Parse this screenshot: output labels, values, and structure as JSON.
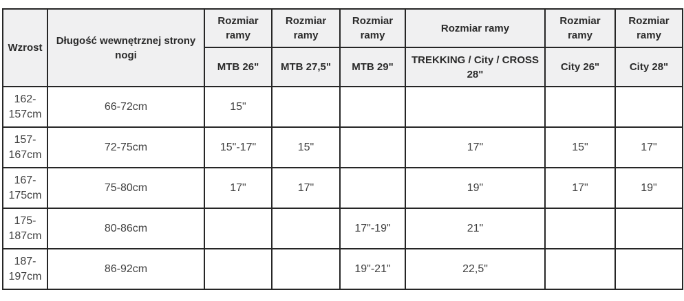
{
  "colors": {
    "header_background": "#f0f0f1",
    "border": "#262626",
    "header_text": "#2b2b2b",
    "body_text": "#404040",
    "cell_background": "#ffffff"
  },
  "table": {
    "corner_headers": [
      "Wzrost",
      "Długość wewnętrznej strony nogi"
    ],
    "group_header_label": "Rozmiar ramy",
    "columns": [
      "MTB 26\"",
      "MTB 27,5\"",
      "MTB 29\"",
      "TREKKING / City / CROSS 28\"",
      "City 26\"",
      "City 28\""
    ],
    "rows": [
      {
        "wzrost": "162-157cm",
        "leg": "66-72cm",
        "sizes": [
          "15\"",
          "",
          "",
          "",
          "",
          ""
        ]
      },
      {
        "wzrost": "157-167cm",
        "leg": "72-75cm",
        "sizes": [
          "15\"-17\"",
          "15\"",
          "",
          "17\"",
          "15\"",
          "17\""
        ]
      },
      {
        "wzrost": "167-175cm",
        "leg": "75-80cm",
        "sizes": [
          "17\"",
          "17\"",
          "",
          "19\"",
          "17\"",
          "19\""
        ]
      },
      {
        "wzrost": "175-187cm",
        "leg": "80-86cm",
        "sizes": [
          "",
          "",
          "17\"-19\"",
          "21\"",
          "",
          ""
        ]
      },
      {
        "wzrost": "187-197cm",
        "leg": "86-92cm",
        "sizes": [
          "",
          "",
          "19\"-21\"",
          "22,5\"",
          "",
          ""
        ]
      }
    ]
  },
  "chart_data": {
    "type": "table",
    "columns": [
      "Wzrost",
      "Długość wewnętrznej strony nogi",
      "MTB 26\"",
      "MTB 27,5\"",
      "MTB 29\"",
      "TREKKING / City / CROSS 28\"",
      "City 26\"",
      "City 28\""
    ],
    "column_group_label": "Rozmiar ramy",
    "rows": [
      [
        "162-157cm",
        "66-72cm",
        "15\"",
        "",
        "",
        "",
        "",
        ""
      ],
      [
        "157-167cm",
        "72-75cm",
        "15\"-17\"",
        "15\"",
        "",
        "17\"",
        "15\"",
        "17\""
      ],
      [
        "167-175cm",
        "75-80cm",
        "17\"",
        "17\"",
        "",
        "19\"",
        "17\"",
        "19\""
      ],
      [
        "175-187cm",
        "80-86cm",
        "",
        "",
        "17\"-19\"",
        "21\"",
        "",
        ""
      ],
      [
        "187-197cm",
        "86-92cm",
        "",
        "",
        "19\"-21\"",
        "22,5\"",
        "",
        ""
      ]
    ],
    "layout": {
      "header_rows": 2,
      "grid": true,
      "header_background": "#f0f0f1"
    }
  }
}
